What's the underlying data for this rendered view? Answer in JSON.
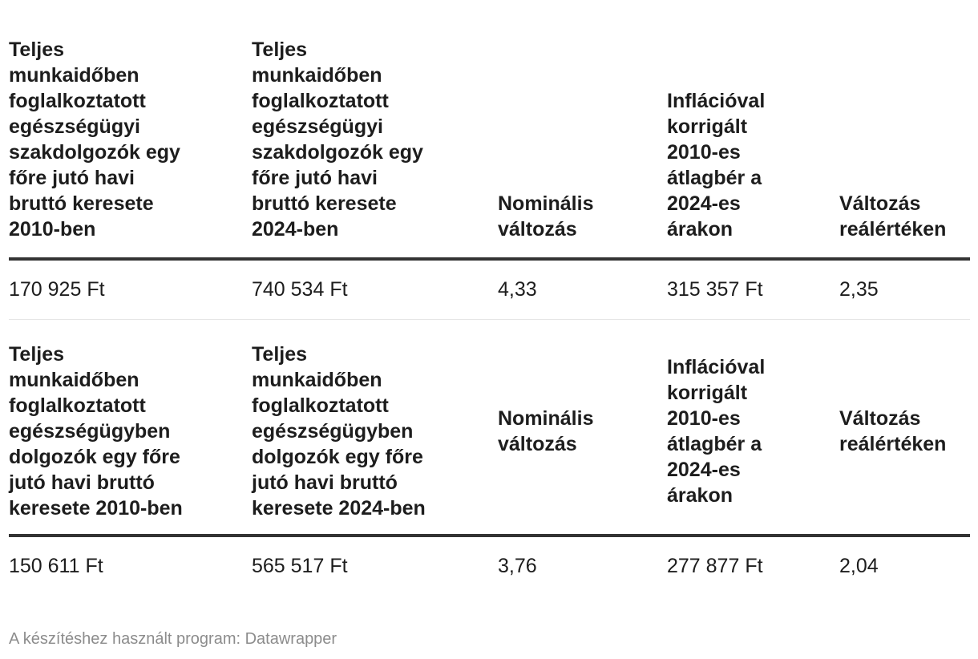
{
  "tables": [
    {
      "headers": [
        "Teljes\nmunkaidőben\nfoglalkoztatott\negészségügyi\nszakdolgozók egy\nfőre jutó havi\nbruttó keresete\n2010-ben",
        "Teljes\nmunkaidőben\nfoglalkoztatott\negészségügyi\nszakdolgozók egy\nfőre jutó havi\nbruttó keresete\n2024-ben",
        "Nominális\nváltozás",
        "Inflációval\nkorrigált\n2010-es\nátlagbér a\n2024-es\nárakon",
        "Változás\nreálértéken"
      ],
      "row": [
        "170 925 Ft",
        "740 534 Ft",
        "4,33",
        "315 357 Ft",
        "2,35"
      ]
    },
    {
      "headers": [
        "Teljes\nmunkaidőben\nfoglalkoztatott\negészségügyben\ndolgozók egy főre\njutó havi bruttó\nkeresete 2010-ben",
        "Teljes\nmunkaidőben\nfoglalkoztatott\negészségügyben\ndolgozók egy főre\njutó havi bruttó\nkeresete 2024-ben",
        "Nominális\nváltozás",
        "Inflációval\nkorrigált\n2010-es\nátlagbér a\n2024-es\nárakon",
        "Változás\nreálértéken"
      ],
      "row": [
        "150 611 Ft",
        "565 517 Ft",
        "3,76",
        "277 877 Ft",
        "2,04"
      ]
    }
  ],
  "footer": "A készítéshez használt program: Datawrapper"
}
